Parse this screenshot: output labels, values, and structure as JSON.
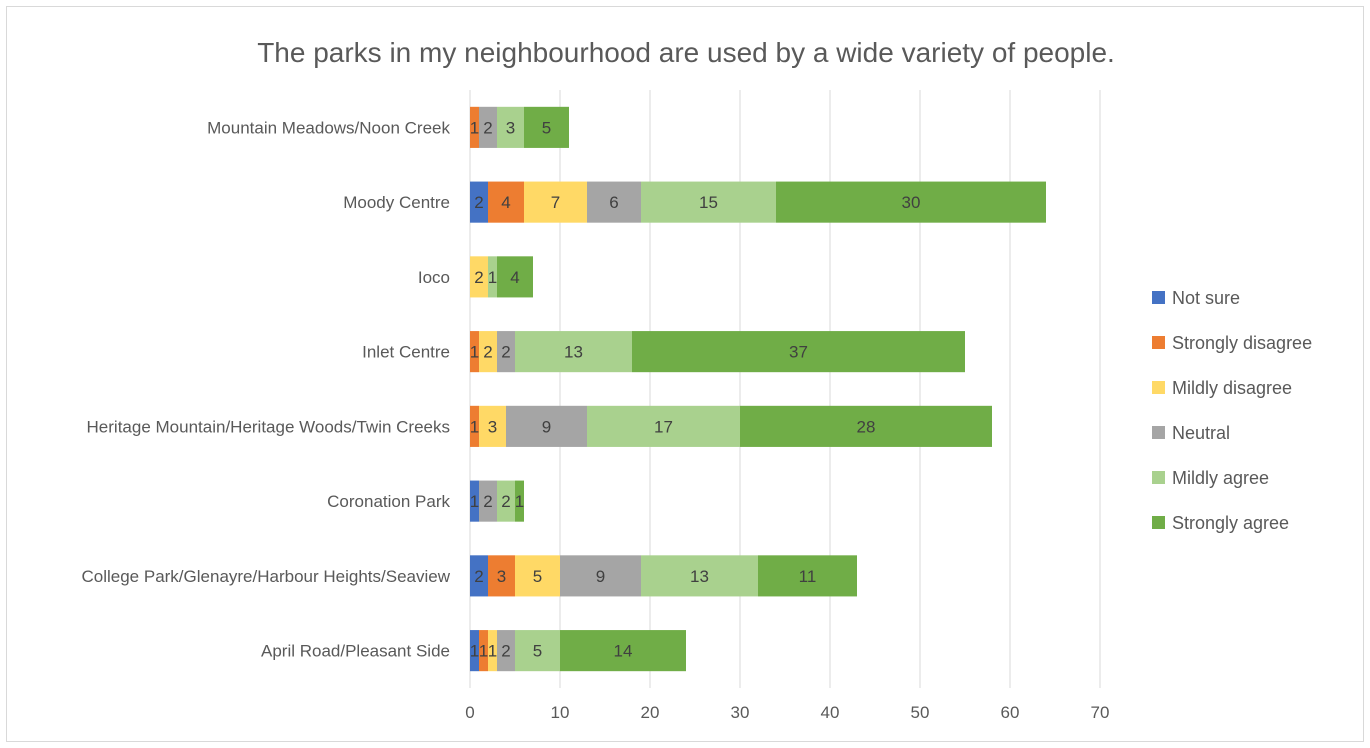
{
  "chart_data": {
    "type": "bar",
    "orientation": "horizontal",
    "stacked": true,
    "title": "The parks in my neighbourhood are used by a wide variety of people.",
    "xlabel": "",
    "ylabel": "",
    "xlim": [
      0,
      70
    ],
    "x_ticks": [
      "0",
      "10",
      "20",
      "30",
      "40",
      "50",
      "60",
      "70"
    ],
    "grid": "vertical",
    "legend_position": "right",
    "categories": [
      "Mountain Meadows/Noon Creek",
      "Moody Centre",
      "Ioco",
      "Inlet Centre",
      "Heritage Mountain/Heritage Woods/Twin Creeks",
      "Coronation Park",
      "College Park/Glenayre/Harbour Heights/Seaview",
      "April Road/Pleasant Side"
    ],
    "series": [
      {
        "name": "Not sure",
        "color": "#4472c4",
        "values": [
          0,
          2,
          0,
          0,
          0,
          1,
          2,
          1
        ]
      },
      {
        "name": "Strongly disagree",
        "color": "#ed7d31",
        "values": [
          1,
          4,
          0,
          1,
          1,
          0,
          3,
          1
        ]
      },
      {
        "name": "Mildly disagree",
        "color": "#ffd966",
        "values": [
          0,
          7,
          2,
          2,
          3,
          0,
          5,
          1
        ]
      },
      {
        "name": "Neutral",
        "color": "#a5a5a5",
        "values": [
          2,
          6,
          0,
          2,
          9,
          2,
          9,
          2
        ]
      },
      {
        "name": "Mildly agree",
        "color": "#a9d18e",
        "values": [
          3,
          15,
          1,
          13,
          17,
          2,
          13,
          5
        ]
      },
      {
        "name": "Strongly agree",
        "color": "#70ad47",
        "values": [
          5,
          30,
          4,
          37,
          28,
          1,
          11,
          14
        ]
      }
    ]
  }
}
